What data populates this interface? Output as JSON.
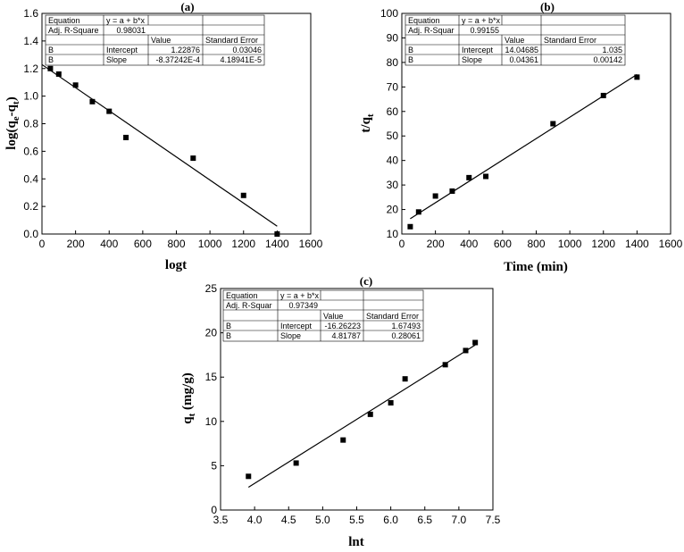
{
  "charts": [
    {
      "title": "(a)",
      "xlabel": "logt",
      "ylabel": "log(q",
      "ylabel_sub1": "e",
      "ylabel_mid": "-q",
      "ylabel_sub2": "t",
      "ylabel_end": ")",
      "xticks": [
        "0",
        "200",
        "400",
        "600",
        "800",
        "1000",
        "1200",
        "1400",
        "1600"
      ],
      "yticks": [
        "0.0",
        "0.2",
        "0.4",
        "0.6",
        "0.8",
        "1.0",
        "1.2",
        "1.4",
        "1.6"
      ],
      "table": {
        "row1": [
          "Equation",
          "y = a + b*x",
          ""
        ],
        "row2": [
          "Adj. R-Square",
          "0.98031",
          ""
        ],
        "row3": [
          "",
          "Value",
          "Standard Error"
        ],
        "row4": [
          "B",
          "Intercept",
          "1.22876",
          "0.03046"
        ],
        "row5": [
          "B",
          "Slope",
          "-8.37242E-4",
          "4.18941E-5"
        ]
      }
    },
    {
      "title": "(b)",
      "xlabel": "Time (min)",
      "ylabel": "t/q",
      "ylabel_sub1": "t",
      "xticks": [
        "0",
        "200",
        "400",
        "600",
        "800",
        "1000",
        "1200",
        "1400",
        "1600"
      ],
      "yticks": [
        "10",
        "20",
        "30",
        "40",
        "50",
        "60",
        "70",
        "80",
        "90",
        "100"
      ],
      "table": {
        "row1": [
          "Equation",
          "y = a + b*x",
          ""
        ],
        "row2": [
          "Adj. R-Squar",
          "0.99155",
          ""
        ],
        "row3": [
          "",
          "Value",
          "Standard Error"
        ],
        "row4": [
          "B",
          "Intercept",
          "14.04685",
          "1.035"
        ],
        "row5": [
          "B",
          "Slope",
          "0.04361",
          "0.00142"
        ]
      }
    },
    {
      "title": "(c)",
      "xlabel": "lnt",
      "ylabel": "q",
      "ylabel_sub1": "t",
      "ylabel_end": " (mg/g)",
      "xticks": [
        "3.5",
        "4.0",
        "4.5",
        "5.0",
        "5.5",
        "6.0",
        "6.5",
        "7.0",
        "7.5"
      ],
      "yticks": [
        "0",
        "5",
        "10",
        "15",
        "20",
        "25"
      ],
      "table": {
        "row1": [
          "Equation",
          "y = a + b*x",
          ""
        ],
        "row2": [
          "Adj. R-Squar",
          "0.97349",
          ""
        ],
        "row3": [
          "",
          "Value",
          "Standard Error"
        ],
        "row4": [
          "B",
          "Intercept",
          "-16.26223",
          "1.67493"
        ],
        "row5": [
          "B",
          "Slope",
          "4.81787",
          "0.28061"
        ]
      }
    }
  ],
  "chart_data": [
    {
      "type": "scatter",
      "title": "(a)",
      "xlabel": "logt",
      "ylabel": "log(qe-qt)",
      "xlim": [
        0,
        1600
      ],
      "ylim": [
        0.0,
        1.6
      ],
      "points": [
        [
          50,
          1.2
        ],
        [
          100,
          1.16
        ],
        [
          200,
          1.08
        ],
        [
          300,
          0.96
        ],
        [
          400,
          0.89
        ],
        [
          500,
          0.7
        ],
        [
          900,
          0.55
        ],
        [
          1200,
          0.28
        ],
        [
          1400,
          0.0
        ]
      ],
      "fit": {
        "intercept": 1.22876,
        "slope": -0.000837242,
        "x_range": [
          0,
          1400
        ]
      }
    },
    {
      "type": "scatter",
      "title": "(b)",
      "xlabel": "Time (min)",
      "ylabel": "t/qt",
      "xlim": [
        0,
        1600
      ],
      "ylim": [
        10,
        100
      ],
      "points": [
        [
          50,
          13
        ],
        [
          100,
          19
        ],
        [
          200,
          25.5
        ],
        [
          300,
          27.5
        ],
        [
          400,
          33
        ],
        [
          500,
          33.5
        ],
        [
          900,
          55
        ],
        [
          1200,
          66.5
        ],
        [
          1400,
          74
        ]
      ],
      "fit": {
        "intercept": 14.04685,
        "slope": 0.04361,
        "x_range": [
          50,
          1400
        ]
      }
    },
    {
      "type": "scatter",
      "title": "(c)",
      "xlabel": "lnt",
      "ylabel": "qt (mg/g)",
      "xlim": [
        3.5,
        7.5
      ],
      "ylim": [
        0,
        25
      ],
      "points": [
        [
          3.91,
          3.8
        ],
        [
          4.61,
          5.3
        ],
        [
          5.3,
          7.9
        ],
        [
          5.7,
          10.8
        ],
        [
          6.0,
          12.1
        ],
        [
          6.21,
          14.8
        ],
        [
          6.8,
          16.4
        ],
        [
          7.1,
          18.0
        ],
        [
          7.24,
          18.9
        ]
      ],
      "fit": {
        "intercept": -16.26223,
        "slope": 4.81787,
        "x_range": [
          3.91,
          7.24
        ]
      }
    }
  ]
}
